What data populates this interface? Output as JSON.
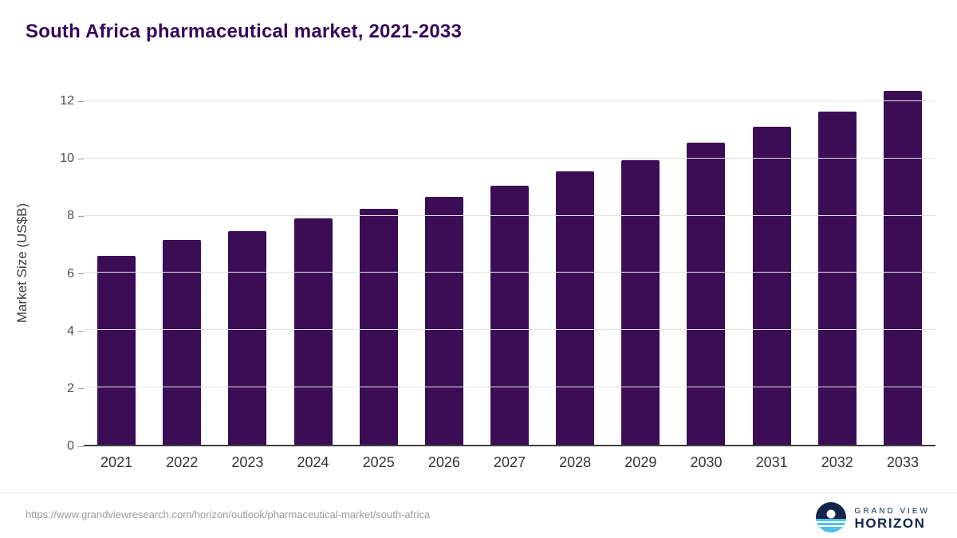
{
  "header": {
    "title": "South Africa pharmaceutical market, 2021-2033"
  },
  "chart_data": {
    "type": "bar",
    "categories": [
      "2021",
      "2022",
      "2023",
      "2024",
      "2025",
      "2026",
      "2027",
      "2028",
      "2029",
      "2030",
      "2031",
      "2032",
      "2033"
    ],
    "values": [
      6.6,
      7.15,
      7.45,
      7.9,
      8.25,
      8.65,
      9.05,
      9.55,
      9.95,
      10.55,
      11.1,
      11.65,
      12.35
    ],
    "title": "South Africa pharmaceutical market, 2021-2033",
    "xlabel": "",
    "ylabel": "Market Size (US$B)",
    "ylim": [
      0,
      12.75
    ],
    "yticks": [
      0,
      2,
      4,
      6,
      8,
      10,
      12
    ],
    "bar_color": "#3a0d55",
    "grid": "horizontal",
    "legend": "none"
  },
  "footer": {
    "source_url": "https://www.grandviewresearch.com/horizon/outlook/pharmaceutical-market/south-africa",
    "logo": {
      "top": "GRAND VIEW",
      "bottom": "HORIZON"
    }
  }
}
